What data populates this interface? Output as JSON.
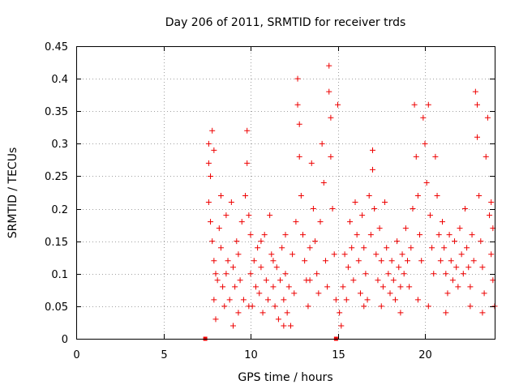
{
  "chart_data": {
    "type": "scatter",
    "title": "Day 206 of 2011, SRMTID for receiver trds",
    "xlabel": "GPS time / hours",
    "ylabel": "SRMTID / TECUs",
    "xlim": [
      0,
      24
    ],
    "ylim": [
      0,
      0.45
    ],
    "xticks": [
      0,
      5,
      10,
      15,
      20
    ],
    "xtick_labels": [
      "0",
      "5",
      "10",
      "15",
      "20"
    ],
    "yticks": [
      0,
      0.05,
      0.1,
      0.15,
      0.2,
      0.25,
      0.3,
      0.35,
      0.4,
      0.45
    ],
    "ytick_labels": [
      "0",
      "0.05",
      "0.1",
      "0.15",
      "0.2",
      "0.25",
      "0.3",
      "0.35",
      "0.4",
      "0.45"
    ],
    "grid": true,
    "marker": "+",
    "color": "#ee0000",
    "series": [
      {
        "name": "SRMTID",
        "points": [
          [
            7.6,
            0.3
          ],
          [
            7.6,
            0.27
          ],
          [
            7.7,
            0.25
          ],
          [
            7.6,
            0.21
          ],
          [
            7.8,
            0.32
          ],
          [
            7.9,
            0.29
          ],
          [
            7.7,
            0.18
          ],
          [
            7.8,
            0.15
          ],
          [
            7.9,
            0.12
          ],
          [
            8.0,
            0.1
          ],
          [
            8.1,
            0.09
          ],
          [
            7.9,
            0.06
          ],
          [
            8.0,
            0.03
          ],
          [
            8.2,
            0.17
          ],
          [
            8.3,
            0.22
          ],
          [
            8.3,
            0.14
          ],
          [
            8.4,
            0.08
          ],
          [
            8.5,
            0.05
          ],
          [
            8.6,
            0.19
          ],
          [
            8.7,
            0.12
          ],
          [
            8.8,
            0.06
          ],
          [
            8.9,
            0.21
          ],
          [
            9.0,
            0.11
          ],
          [
            9.0,
            0.02
          ],
          [
            9.1,
            0.08
          ],
          [
            9.2,
            0.15
          ],
          [
            9.3,
            0.13
          ],
          [
            9.4,
            0.09
          ],
          [
            9.5,
            0.18
          ],
          [
            9.6,
            0.06
          ],
          [
            9.7,
            0.22
          ],
          [
            9.8,
            0.32
          ],
          [
            9.8,
            0.27
          ],
          [
            9.9,
            0.19
          ],
          [
            10.0,
            0.16
          ],
          [
            10.0,
            0.1
          ],
          [
            10.1,
            0.05
          ],
          [
            10.2,
            0.12
          ],
          [
            10.3,
            0.08
          ],
          [
            10.4,
            0.14
          ],
          [
            10.5,
            0.07
          ],
          [
            10.6,
            0.11
          ],
          [
            10.7,
            0.04
          ],
          [
            10.8,
            0.16
          ],
          [
            10.9,
            0.09
          ],
          [
            11.0,
            0.06
          ],
          [
            11.1,
            0.19
          ],
          [
            11.2,
            0.13
          ],
          [
            11.3,
            0.08
          ],
          [
            11.4,
            0.05
          ],
          [
            11.5,
            0.11
          ],
          [
            11.6,
            0.03
          ],
          [
            11.7,
            0.09
          ],
          [
            11.8,
            0.14
          ],
          [
            11.9,
            0.06
          ],
          [
            12.0,
            0.1
          ],
          [
            12.1,
            0.04
          ],
          [
            12.2,
            0.08
          ],
          [
            12.3,
            0.02
          ],
          [
            12.4,
            0.13
          ],
          [
            12.5,
            0.07
          ],
          [
            12.6,
            0.18
          ],
          [
            12.7,
            0.36
          ],
          [
            12.7,
            0.4
          ],
          [
            12.8,
            0.33
          ],
          [
            12.8,
            0.28
          ],
          [
            12.9,
            0.22
          ],
          [
            13.0,
            0.16
          ],
          [
            13.1,
            0.12
          ],
          [
            13.2,
            0.09
          ],
          [
            13.3,
            0.05
          ],
          [
            13.4,
            0.14
          ],
          [
            13.5,
            0.27
          ],
          [
            13.6,
            0.2
          ],
          [
            13.7,
            0.15
          ],
          [
            13.8,
            0.1
          ],
          [
            13.9,
            0.07
          ],
          [
            14.0,
            0.18
          ],
          [
            14.1,
            0.3
          ],
          [
            14.2,
            0.24
          ],
          [
            14.3,
            0.12
          ],
          [
            14.4,
            0.08
          ],
          [
            14.5,
            0.42
          ],
          [
            14.5,
            0.38
          ],
          [
            14.6,
            0.34
          ],
          [
            14.6,
            0.28
          ],
          [
            14.7,
            0.2
          ],
          [
            14.8,
            0.13
          ],
          [
            14.9,
            0.06
          ],
          [
            15.0,
            0.36
          ],
          [
            15.1,
            0.04
          ],
          [
            15.2,
            0.02
          ],
          [
            15.3,
            0.08
          ],
          [
            15.4,
            0.13
          ],
          [
            15.5,
            0.06
          ],
          [
            15.6,
            0.11
          ],
          [
            15.7,
            0.18
          ],
          [
            15.8,
            0.14
          ],
          [
            15.9,
            0.09
          ],
          [
            16.0,
            0.21
          ],
          [
            16.1,
            0.16
          ],
          [
            16.2,
            0.12
          ],
          [
            16.3,
            0.07
          ],
          [
            16.4,
            0.19
          ],
          [
            16.5,
            0.14
          ],
          [
            16.6,
            0.1
          ],
          [
            16.7,
            0.06
          ],
          [
            16.8,
            0.22
          ],
          [
            16.9,
            0.16
          ],
          [
            17.0,
            0.29
          ],
          [
            17.0,
            0.26
          ],
          [
            17.1,
            0.2
          ],
          [
            17.2,
            0.13
          ],
          [
            17.3,
            0.09
          ],
          [
            17.4,
            0.17
          ],
          [
            17.5,
            0.12
          ],
          [
            17.6,
            0.08
          ],
          [
            17.7,
            0.21
          ],
          [
            17.8,
            0.14
          ],
          [
            17.9,
            0.1
          ],
          [
            18.0,
            0.07
          ],
          [
            18.1,
            0.12
          ],
          [
            18.2,
            0.09
          ],
          [
            18.3,
            0.06
          ],
          [
            18.4,
            0.15
          ],
          [
            18.5,
            0.11
          ],
          [
            18.6,
            0.08
          ],
          [
            18.7,
            0.13
          ],
          [
            18.8,
            0.1
          ],
          [
            18.9,
            0.17
          ],
          [
            19.0,
            0.12
          ],
          [
            19.1,
            0.08
          ],
          [
            19.2,
            0.14
          ],
          [
            19.3,
            0.2
          ],
          [
            19.4,
            0.36
          ],
          [
            19.5,
            0.28
          ],
          [
            19.6,
            0.22
          ],
          [
            19.7,
            0.16
          ],
          [
            19.8,
            0.12
          ],
          [
            19.9,
            0.34
          ],
          [
            20.0,
            0.3
          ],
          [
            20.1,
            0.24
          ],
          [
            20.2,
            0.36
          ],
          [
            20.3,
            0.19
          ],
          [
            20.4,
            0.14
          ],
          [
            20.5,
            0.1
          ],
          [
            20.6,
            0.28
          ],
          [
            20.7,
            0.22
          ],
          [
            20.8,
            0.16
          ],
          [
            20.9,
            0.12
          ],
          [
            21.0,
            0.18
          ],
          [
            21.1,
            0.14
          ],
          [
            21.2,
            0.1
          ],
          [
            21.3,
            0.07
          ],
          [
            21.4,
            0.16
          ],
          [
            21.5,
            0.12
          ],
          [
            21.6,
            0.09
          ],
          [
            21.7,
            0.15
          ],
          [
            21.8,
            0.11
          ],
          [
            21.9,
            0.08
          ],
          [
            22.0,
            0.17
          ],
          [
            22.1,
            0.13
          ],
          [
            22.2,
            0.1
          ],
          [
            22.3,
            0.2
          ],
          [
            22.4,
            0.14
          ],
          [
            22.5,
            0.11
          ],
          [
            22.6,
            0.08
          ],
          [
            22.7,
            0.16
          ],
          [
            22.8,
            0.12
          ],
          [
            22.9,
            0.38
          ],
          [
            23.0,
            0.36
          ],
          [
            23.0,
            0.31
          ],
          [
            23.1,
            0.22
          ],
          [
            23.2,
            0.15
          ],
          [
            23.3,
            0.11
          ],
          [
            23.4,
            0.07
          ],
          [
            23.5,
            0.28
          ],
          [
            23.6,
            0.34
          ],
          [
            23.7,
            0.19
          ],
          [
            23.8,
            0.13
          ],
          [
            23.9,
            0.09
          ],
          [
            24.0,
            0.05
          ],
          [
            23.9,
            0.17
          ],
          [
            23.8,
            0.21
          ],
          [
            9.9,
            0.05
          ],
          [
            10.6,
            0.15
          ],
          [
            11.3,
            0.12
          ],
          [
            12.0,
            0.16
          ],
          [
            13.4,
            0.09
          ],
          [
            16.5,
            0.05
          ],
          [
            18.6,
            0.04
          ],
          [
            20.2,
            0.05
          ],
          [
            21.2,
            0.04
          ],
          [
            22.6,
            0.05
          ],
          [
            8.6,
            0.1
          ],
          [
            9.3,
            0.04
          ],
          [
            11.9,
            0.02
          ],
          [
            17.5,
            0.05
          ],
          [
            19.6,
            0.06
          ],
          [
            23.3,
            0.04
          ]
        ]
      }
    ],
    "extra_markers": [
      {
        "x": 7.4,
        "y": 0.0
      },
      {
        "x": 14.9,
        "y": 0.0
      }
    ]
  }
}
